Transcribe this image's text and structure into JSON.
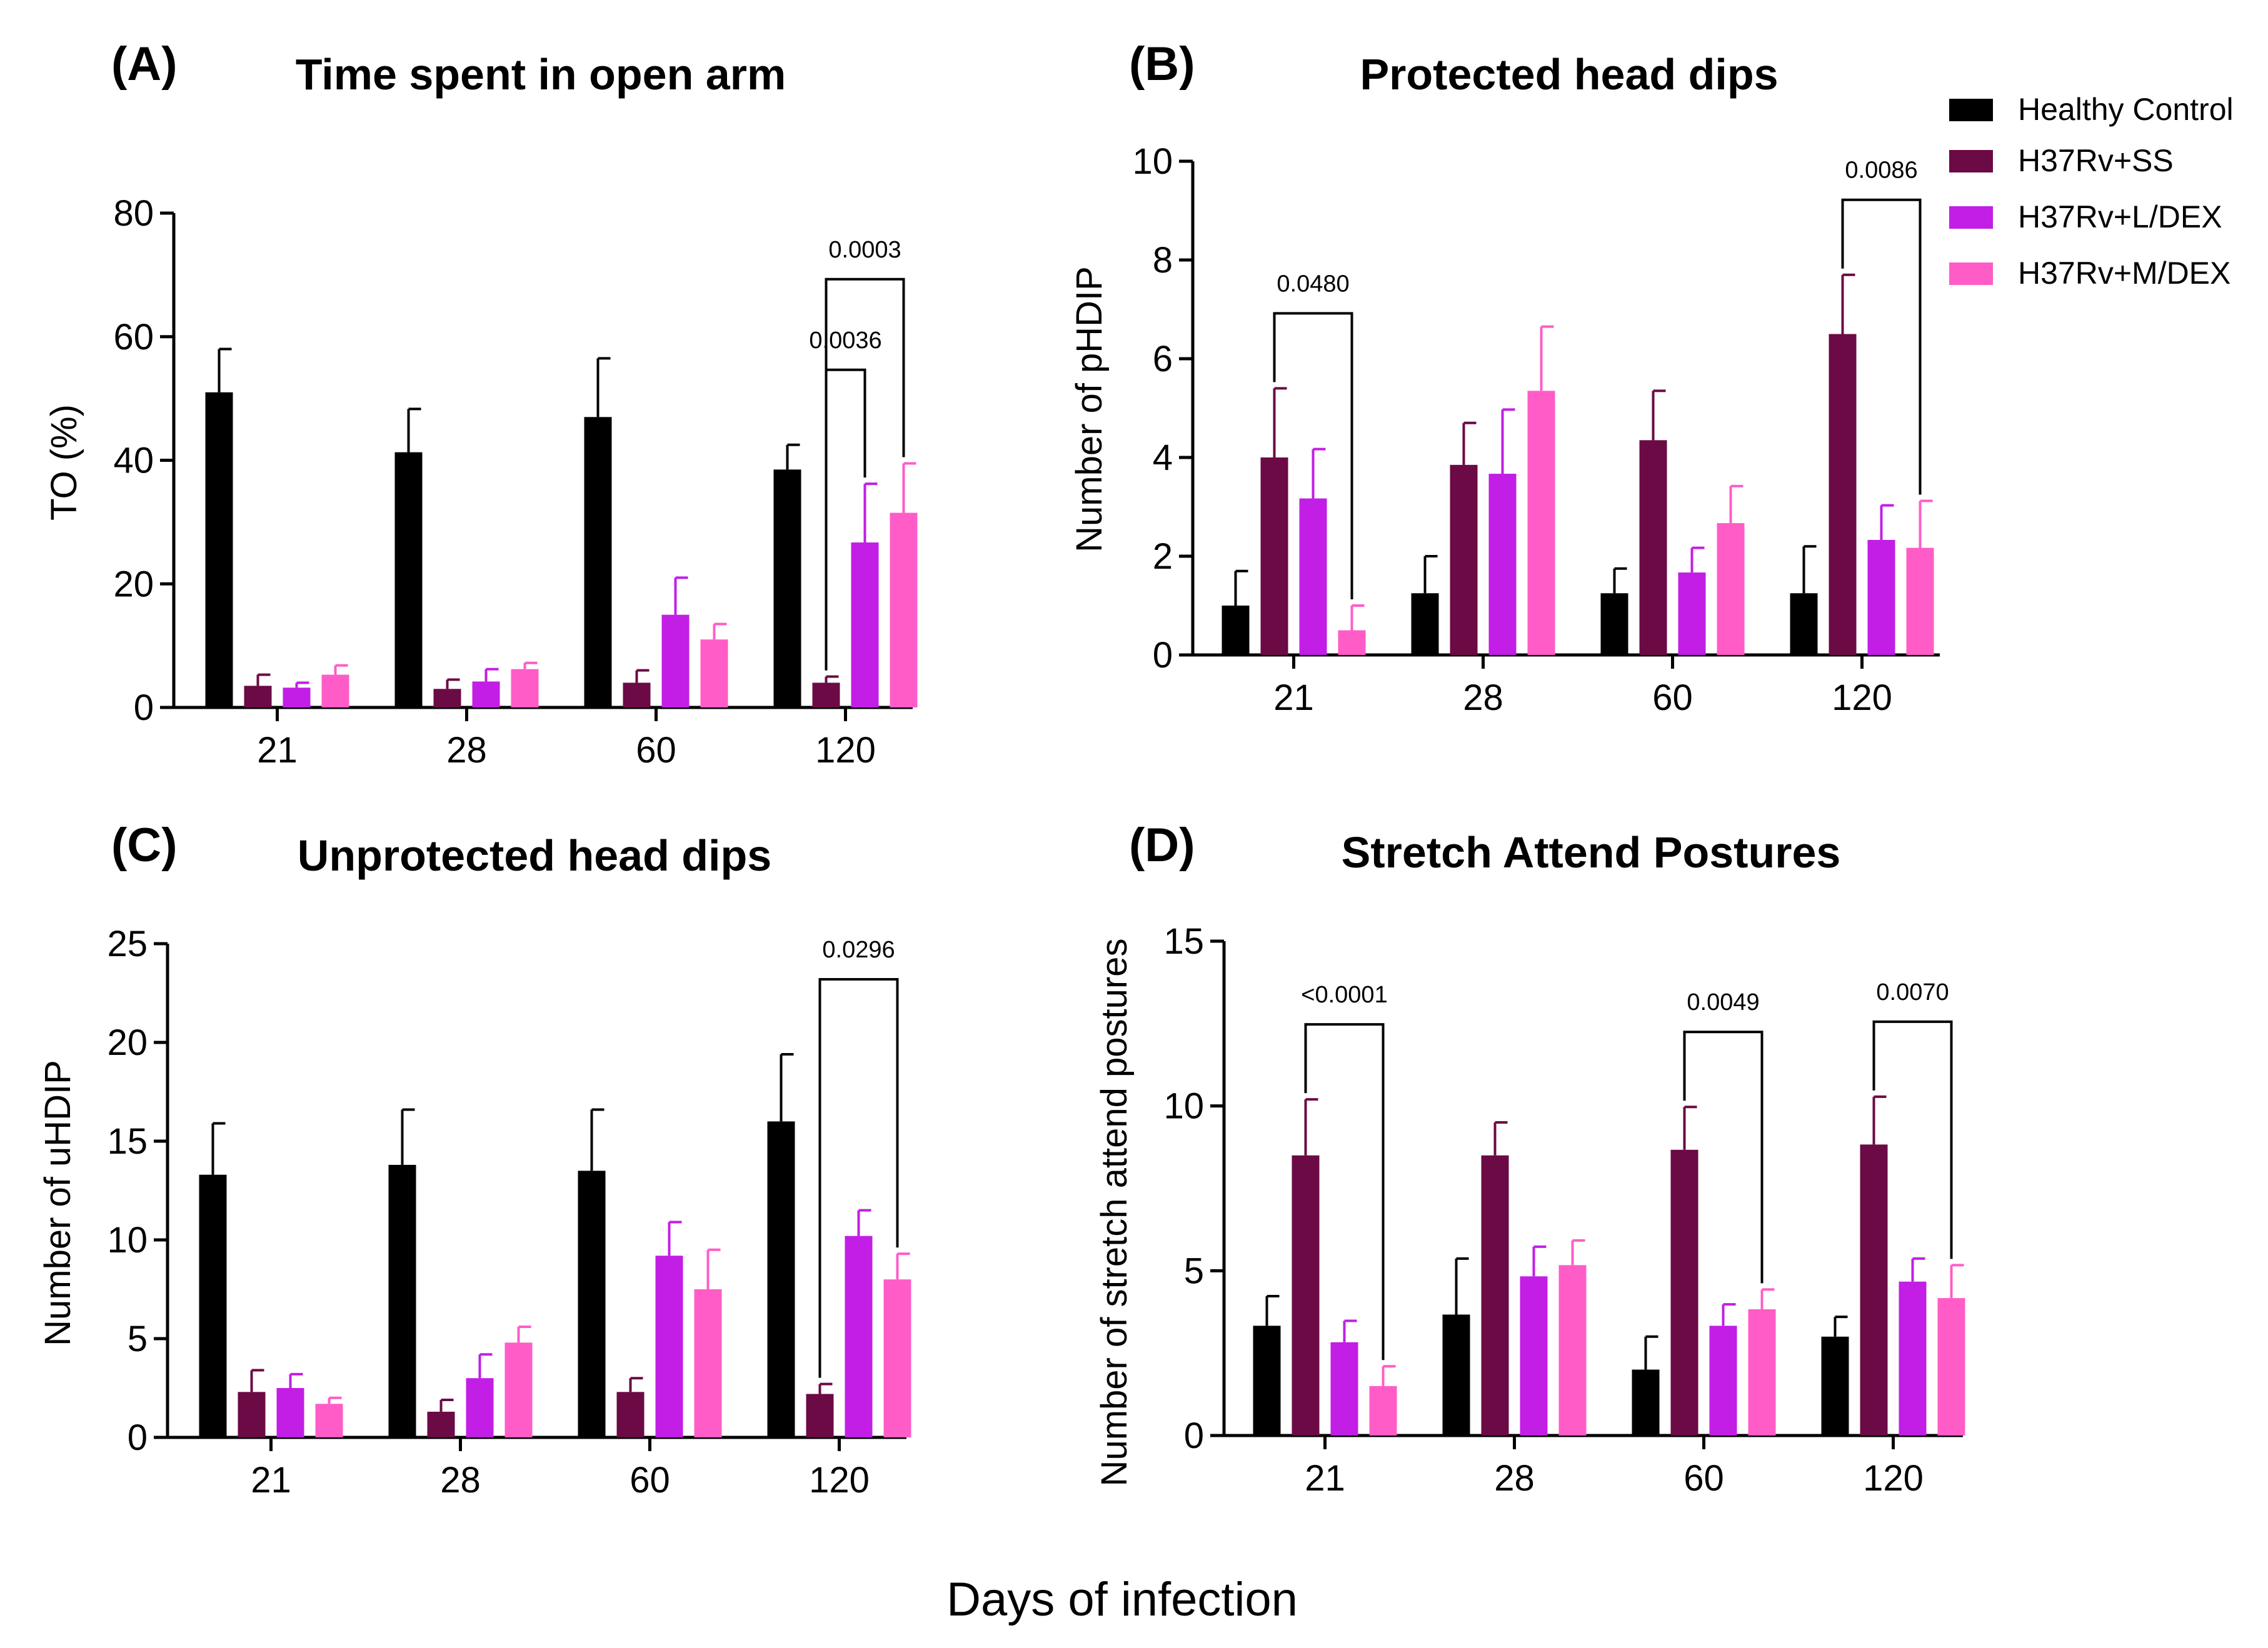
{
  "figure": {
    "xlabel": "Days of infection"
  },
  "legend": [
    {
      "label": "Healthy Control",
      "color": "#000000"
    },
    {
      "label": "H37Rv+SS",
      "color": "#6b0a45"
    },
    {
      "label": "H37Rv+L/DEX",
      "color": "#c21ee6"
    },
    {
      "label": "H37Rv+M/DEX",
      "color": "#ff5cc8"
    }
  ],
  "chart_data": [
    {
      "panel": "(A)",
      "type": "bar",
      "title": "Time spent in open arm",
      "ylabel": "TO (%)",
      "xlabel": "",
      "categories": [
        "21",
        "28",
        "60",
        "120"
      ],
      "ylim": [
        0,
        80
      ],
      "yticks": [
        0,
        20,
        40,
        60,
        80
      ],
      "series": [
        {
          "name": "Healthy Control",
          "values": [
            51,
            41.3,
            47,
            38.5
          ],
          "errors": [
            7,
            7,
            9.5,
            4
          ]
        },
        {
          "name": "H37Rv+SS",
          "values": [
            3.5,
            3,
            4,
            4
          ],
          "errors": [
            1.8,
            1.5,
            2,
            1
          ]
        },
        {
          "name": "H37Rv+L/DEX",
          "values": [
            3.2,
            4.2,
            15,
            26.7
          ],
          "errors": [
            0.8,
            2,
            6,
            9.5
          ]
        },
        {
          "name": "H37Rv+M/DEX",
          "values": [
            5.3,
            6.2,
            11,
            31.5
          ],
          "errors": [
            1.5,
            1,
            2.5,
            8
          ]
        }
      ],
      "comparisons": [
        {
          "category": "120",
          "from_series": 1,
          "to_series": 2,
          "label": "0.0036",
          "level": 0
        },
        {
          "category": "120",
          "from_series": 1,
          "to_series": 3,
          "label": "0.0003",
          "level": 1
        }
      ]
    },
    {
      "panel": "(B)",
      "type": "bar",
      "title": "Protected head dips",
      "ylabel": "Number of pHDIP",
      "xlabel": "",
      "categories": [
        "21",
        "28",
        "60",
        "120"
      ],
      "ylim": [
        0,
        10
      ],
      "yticks": [
        0,
        2,
        4,
        6,
        8,
        10
      ],
      "series": [
        {
          "name": "Healthy Control",
          "values": [
            1,
            1.25,
            1.25,
            1.25
          ],
          "errors": [
            0.7,
            0.75,
            0.5,
            0.95
          ]
        },
        {
          "name": "H37Rv+SS",
          "values": [
            4,
            3.85,
            4.35,
            6.5
          ],
          "errors": [
            1.4,
            0.85,
            1,
            1.2
          ]
        },
        {
          "name": "H37Rv+L/DEX",
          "values": [
            3.17,
            3.67,
            1.67,
            2.33
          ],
          "errors": [
            1,
            1.3,
            0.5,
            0.7
          ]
        },
        {
          "name": "H37Rv+M/DEX",
          "values": [
            0.5,
            5.35,
            2.67,
            2.17
          ],
          "errors": [
            0.5,
            1.3,
            0.75,
            0.95
          ]
        }
      ],
      "comparisons": [
        {
          "category": "21",
          "from_series": 1,
          "to_series": 3,
          "label": "0.0480",
          "level": 0
        },
        {
          "category": "120",
          "from_series": 1,
          "to_series": 3,
          "label": "0.0086",
          "level": 0
        }
      ]
    },
    {
      "panel": "(C)",
      "type": "bar",
      "title": "Unprotected head dips",
      "ylabel": "Number of uHDIP",
      "xlabel": "",
      "categories": [
        "21",
        "28",
        "60",
        "120"
      ],
      "ylim": [
        0,
        25
      ],
      "yticks": [
        0,
        5,
        10,
        15,
        20,
        25
      ],
      "series": [
        {
          "name": "Healthy Control",
          "values": [
            13.3,
            13.8,
            13.5,
            16
          ],
          "errors": [
            2.6,
            2.8,
            3.1,
            3.4
          ]
        },
        {
          "name": "H37Rv+SS",
          "values": [
            2.3,
            1.3,
            2.3,
            2.2
          ],
          "errors": [
            1.1,
            0.6,
            0.7,
            0.5
          ]
        },
        {
          "name": "H37Rv+L/DEX",
          "values": [
            2.5,
            3,
            9.2,
            10.2
          ],
          "errors": [
            0.7,
            1.2,
            1.7,
            1.3
          ]
        },
        {
          "name": "H37Rv+M/DEX",
          "values": [
            1.7,
            4.8,
            7.5,
            8
          ],
          "errors": [
            0.3,
            0.8,
            2,
            1.3
          ]
        }
      ],
      "comparisons": [
        {
          "category": "120",
          "from_series": 1,
          "to_series": 3,
          "label": "0.0296",
          "level": 0
        }
      ]
    },
    {
      "panel": "(D)",
      "type": "bar",
      "title": "Stretch Attend Postures",
      "ylabel": "Number of stretch attend postures",
      "xlabel": "",
      "categories": [
        "21",
        "28",
        "60",
        "120"
      ],
      "ylim": [
        0,
        15
      ],
      "yticks": [
        0,
        5,
        10,
        15
      ],
      "series": [
        {
          "name": "Healthy Control",
          "values": [
            3.33,
            3.67,
            2,
            3
          ],
          "errors": [
            0.9,
            1.7,
            1,
            0.6
          ]
        },
        {
          "name": "H37Rv+SS",
          "values": [
            8.5,
            8.5,
            8.67,
            8.83
          ],
          "errors": [
            1.7,
            1,
            1.3,
            1.45
          ]
        },
        {
          "name": "H37Rv+L/DEX",
          "values": [
            2.83,
            4.83,
            3.33,
            4.67
          ],
          "errors": [
            0.65,
            0.9,
            0.65,
            0.7
          ]
        },
        {
          "name": "H37Rv+M/DEX",
          "values": [
            1.5,
            5.17,
            3.83,
            4.17
          ],
          "errors": [
            0.6,
            0.75,
            0.6,
            1
          ]
        }
      ],
      "comparisons": [
        {
          "category": "21",
          "from_series": 1,
          "to_series": 3,
          "label": "<0.0001",
          "level": 0
        },
        {
          "category": "60",
          "from_series": 1,
          "to_series": 3,
          "label": "0.0049",
          "level": 0
        },
        {
          "category": "120",
          "from_series": 1,
          "to_series": 3,
          "label": "0.0070",
          "level": 0
        }
      ]
    }
  ]
}
